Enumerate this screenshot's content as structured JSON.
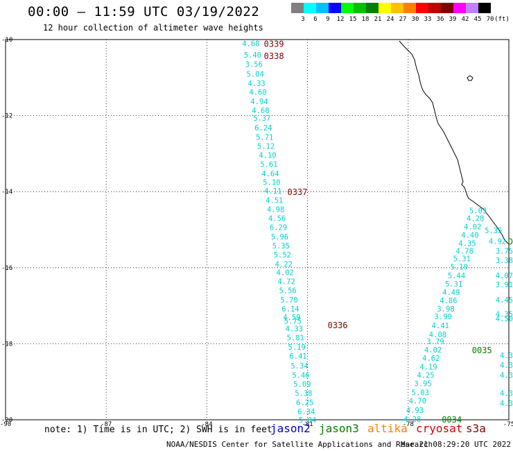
{
  "header": {
    "title": "00:00 – 11:59 UTC 03/19/2022",
    "subtitle": "12 hour collection of altimeter wave heights"
  },
  "legend": {
    "unit": "(ft)",
    "bins": [
      {
        "label": "3",
        "color": "#808080"
      },
      {
        "label": "6",
        "color": "#00ffff"
      },
      {
        "label": "9",
        "color": "#00c0ff"
      },
      {
        "label": "12",
        "color": "#0000ff"
      },
      {
        "label": "15",
        "color": "#00ff00"
      },
      {
        "label": "18",
        "color": "#00c000"
      },
      {
        "label": "21",
        "color": "#008000"
      },
      {
        "label": "24",
        "color": "#ffff00"
      },
      {
        "label": "27",
        "color": "#ffc000"
      },
      {
        "label": "30",
        "color": "#ff8000"
      },
      {
        "label": "33",
        "color": "#ff0000"
      },
      {
        "label": "36",
        "color": "#c00000"
      },
      {
        "label": "39",
        "color": "#800000"
      },
      {
        "label": "42",
        "color": "#ff00ff"
      },
      {
        "label": "45",
        "color": "#c080ff"
      },
      {
        "label": "70",
        "color": "#000000"
      }
    ]
  },
  "axes": {
    "lat_labels": [
      "-10",
      "-12",
      "-14",
      "-16",
      "-18",
      "-20"
    ],
    "lon_labels": [
      "-90",
      "-87",
      "-84",
      "-81",
      "-78",
      "-75"
    ]
  },
  "tracks": [
    {
      "name": "cryosat-pass",
      "color": "#00d0d0",
      "points": [
        {
          "lon": -82.95,
          "lat": -10.1,
          "v": "4.68"
        },
        {
          "lon": -82.9,
          "lat": -10.4,
          "v": "5.40"
        },
        {
          "lon": -82.86,
          "lat": -10.65,
          "v": "3.56"
        },
        {
          "lon": -82.82,
          "lat": -10.9,
          "v": "5.04"
        },
        {
          "lon": -82.78,
          "lat": -11.15,
          "v": "4.33"
        },
        {
          "lon": -82.74,
          "lat": -11.38,
          "v": "4.60"
        },
        {
          "lon": -82.7,
          "lat": -11.62,
          "v": "4.94"
        },
        {
          "lon": -82.66,
          "lat": -11.86,
          "v": "4.68"
        },
        {
          "lon": -82.62,
          "lat": -12.06,
          "v": "5.37"
        },
        {
          "lon": -82.58,
          "lat": -12.32,
          "v": "6.24"
        },
        {
          "lon": -82.54,
          "lat": -12.56,
          "v": "5.71"
        },
        {
          "lon": -82.5,
          "lat": -12.8,
          "v": "5.12"
        },
        {
          "lon": -82.45,
          "lat": -13.04,
          "v": "4.10"
        },
        {
          "lon": -82.41,
          "lat": -13.28,
          "v": "5.61"
        },
        {
          "lon": -82.37,
          "lat": -13.52,
          "v": "4.64"
        },
        {
          "lon": -82.33,
          "lat": -13.75,
          "v": "5.10"
        },
        {
          "lon": -82.29,
          "lat": -13.98,
          "v": "4.11"
        },
        {
          "lon": -82.25,
          "lat": -14.22,
          "v": "4.51"
        },
        {
          "lon": -82.21,
          "lat": -14.46,
          "v": "4.98"
        },
        {
          "lon": -82.17,
          "lat": -14.7,
          "v": "4.56"
        },
        {
          "lon": -82.13,
          "lat": -14.94,
          "v": "6.29"
        },
        {
          "lon": -82.09,
          "lat": -15.18,
          "v": "5.96"
        },
        {
          "lon": -82.05,
          "lat": -15.42,
          "v": "5.35"
        },
        {
          "lon": -82.01,
          "lat": -15.66,
          "v": "5.52"
        },
        {
          "lon": -81.97,
          "lat": -15.9,
          "v": "4.22"
        },
        {
          "lon": -81.93,
          "lat": -16.12,
          "v": "4.02"
        },
        {
          "lon": -81.89,
          "lat": -16.36,
          "v": "4.72"
        },
        {
          "lon": -81.85,
          "lat": -16.6,
          "v": "5.56"
        },
        {
          "lon": -81.81,
          "lat": -16.84,
          "v": "5.70"
        },
        {
          "lon": -81.77,
          "lat": -17.08,
          "v": "6.14"
        },
        {
          "lon": -81.73,
          "lat": -17.3,
          "v": "4.59"
        },
        {
          "lon": -81.7,
          "lat": -17.4,
          "v": "5.75"
        },
        {
          "lon": -81.66,
          "lat": -17.6,
          "v": "4.33"
        },
        {
          "lon": -81.62,
          "lat": -17.84,
          "v": "5.81"
        },
        {
          "lon": -81.58,
          "lat": -18.08,
          "v": "5.19"
        },
        {
          "lon": -81.54,
          "lat": -18.32,
          "v": "6.41"
        },
        {
          "lon": -81.5,
          "lat": -18.58,
          "v": "5.34"
        },
        {
          "lon": -81.46,
          "lat": -18.82,
          "v": "5.46"
        },
        {
          "lon": -81.42,
          "lat": -19.06,
          "v": "5.09"
        },
        {
          "lon": -81.38,
          "lat": -19.3,
          "v": "5.38"
        },
        {
          "lon": -81.34,
          "lat": -19.54,
          "v": "6.25"
        },
        {
          "lon": -81.3,
          "lat": -19.78,
          "v": "6.34"
        },
        {
          "lon": -81.26,
          "lat": -20.0,
          "v": "5.04"
        }
      ]
    },
    {
      "name": "coastal-pass",
      "color": "#00d0d0",
      "points": [
        {
          "lon": -78.14,
          "lat": -19.98,
          "v": "4.28"
        },
        {
          "lon": -78.06,
          "lat": -19.74,
          "v": "4.93"
        },
        {
          "lon": -77.98,
          "lat": -19.5,
          "v": "4.70"
        },
        {
          "lon": -77.9,
          "lat": -19.28,
          "v": "5.03"
        },
        {
          "lon": -77.82,
          "lat": -19.04,
          "v": "3.95"
        },
        {
          "lon": -77.74,
          "lat": -18.82,
          "v": "4.25"
        },
        {
          "lon": -77.66,
          "lat": -18.6,
          "v": "4.19"
        },
        {
          "lon": -77.58,
          "lat": -18.38,
          "v": "4.62"
        },
        {
          "lon": -77.52,
          "lat": -18.16,
          "v": "4.02"
        },
        {
          "lon": -77.45,
          "lat": -17.94,
          "v": "3.79"
        },
        {
          "lon": -77.38,
          "lat": -17.76,
          "v": "4.08"
        },
        {
          "lon": -77.3,
          "lat": -17.52,
          "v": "4.41"
        },
        {
          "lon": -77.22,
          "lat": -17.28,
          "v": "3.90"
        },
        {
          "lon": -77.14,
          "lat": -17.08,
          "v": "3.98"
        },
        {
          "lon": -77.06,
          "lat": -16.86,
          "v": "4.86"
        },
        {
          "lon": -76.98,
          "lat": -16.64,
          "v": "4.49"
        },
        {
          "lon": -76.9,
          "lat": -16.42,
          "v": "5.31"
        },
        {
          "lon": -76.82,
          "lat": -16.2,
          "v": "5.44"
        },
        {
          "lon": -76.74,
          "lat": -15.98,
          "v": "5.10"
        },
        {
          "lon": -76.66,
          "lat": -15.76,
          "v": "5.31"
        },
        {
          "lon": -76.58,
          "lat": -15.56,
          "v": "4.78"
        },
        {
          "lon": -76.5,
          "lat": -15.36,
          "v": "4.35"
        },
        {
          "lon": -76.42,
          "lat": -15.14,
          "v": "4.40"
        },
        {
          "lon": -76.34,
          "lat": -14.92,
          "v": "4.02"
        },
        {
          "lon": -76.26,
          "lat": -14.7,
          "v": "4.28"
        },
        {
          "lon": -76.18,
          "lat": -14.5,
          "v": "5.03"
        }
      ]
    },
    {
      "name": "edge-pass",
      "color": "#00d0d0",
      "points": [
        {
          "lon": -75.72,
          "lat": -15.02,
          "v": "5.35"
        },
        {
          "lon": -75.6,
          "lat": -15.3,
          "v": "4.92"
        },
        {
          "lon": -75.5,
          "lat": -15.56,
          "v": "3.75"
        },
        {
          "lon": -75.5,
          "lat": -15.8,
          "v": "3.38"
        },
        {
          "lon": -75.44,
          "lat": -16.2,
          "v": "4.07"
        },
        {
          "lon": -75.44,
          "lat": -16.44,
          "v": "3.91"
        },
        {
          "lon": -75.4,
          "lat": -16.84,
          "v": "4.45"
        },
        {
          "lon": -75.34,
          "lat": -17.22,
          "v": "4.35"
        },
        {
          "lon": -75.34,
          "lat": -17.34,
          "v": "4.50"
        },
        {
          "lon": -75.2,
          "lat": -18.3,
          "v": "4.3"
        },
        {
          "lon": -75.2,
          "lat": -18.56,
          "v": "4.3"
        },
        {
          "lon": -75.2,
          "lat": -18.82,
          "v": "4.3"
        },
        {
          "lon": -75.2,
          "lat": -19.3,
          "v": "4.3"
        },
        {
          "lon": -75.2,
          "lat": -19.56,
          "v": "4.3"
        }
      ]
    }
  ],
  "pass_times": [
    {
      "label": "0339",
      "lon": -82.3,
      "lat": -10.1,
      "color": "#800000"
    },
    {
      "label": "0338",
      "lon": -82.3,
      "lat": -10.42,
      "color": "#800000"
    },
    {
      "label": "0337",
      "lon": -81.6,
      "lat": -14.0,
      "color": "#800000"
    },
    {
      "label": "0336",
      "lon": -80.4,
      "lat": -17.5,
      "color": "#800000"
    },
    {
      "label": "0035",
      "lon": -76.1,
      "lat": -18.16,
      "color": "#008000"
    },
    {
      "label": "0034",
      "lon": -77.0,
      "lat": -19.98,
      "color": "#008000"
    },
    {
      "label": "D",
      "lon": -75.14,
      "lat": -15.3,
      "color": "#008000"
    }
  ],
  "footer": {
    "note": "note:  1) Time is in UTC; 2) SWH is in feet",
    "satellites": [
      {
        "name": "jason2",
        "color": "#0000c0"
      },
      {
        "name": "jason3",
        "color": "#008000"
      },
      {
        "name": "altika",
        "color": "#ff8000"
      },
      {
        "name": "cryosat",
        "color": "#d00000"
      },
      {
        "name": "s3a",
        "color": "#800000"
      }
    ],
    "credit": "NOAA/NESDIS Center for Satellite Applications and Research",
    "timestamp": "Mar 21 08:29:20 UTC 2022"
  }
}
